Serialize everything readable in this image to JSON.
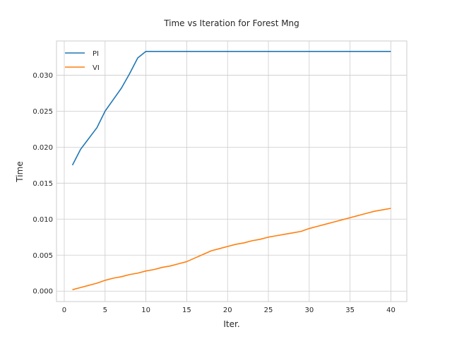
{
  "chart_data": {
    "type": "line",
    "title": "Time vs Iteration for Forest Mng",
    "xlabel": "Iter.",
    "ylabel": "Time",
    "xlim": [
      -0.95,
      41.95
    ],
    "ylim": [
      -0.00145,
      0.03475
    ],
    "xticks": [
      0,
      5,
      10,
      15,
      20,
      25,
      30,
      35,
      40
    ],
    "yticks": [
      0.0,
      0.005,
      0.01,
      0.015,
      0.02,
      0.025,
      0.03
    ],
    "ytick_labels": [
      "0.000",
      "0.005",
      "0.010",
      "0.015",
      "0.020",
      "0.025",
      "0.030"
    ],
    "grid": true,
    "legend_position": "top-left",
    "series": [
      {
        "name": "PI",
        "color": "#1f77b4",
        "x": [
          1,
          2,
          3,
          4,
          5,
          6,
          7,
          8,
          9,
          10,
          11,
          12,
          13,
          14,
          15,
          16,
          17,
          18,
          19,
          20,
          21,
          22,
          23,
          24,
          25,
          26,
          27,
          28,
          29,
          30,
          31,
          32,
          33,
          34,
          35,
          36,
          37,
          38,
          39,
          40
        ],
        "y": [
          0.0175,
          0.0197,
          0.0212,
          0.0227,
          0.025,
          0.0266,
          0.0282,
          0.0302,
          0.0324,
          0.0333,
          0.0333,
          0.0333,
          0.0333,
          0.0333,
          0.0333,
          0.0333,
          0.0333,
          0.0333,
          0.0333,
          0.0333,
          0.0333,
          0.0333,
          0.0333,
          0.0333,
          0.0333,
          0.0333,
          0.0333,
          0.0333,
          0.0333,
          0.0333,
          0.0333,
          0.0333,
          0.0333,
          0.0333,
          0.0333,
          0.0333,
          0.0333,
          0.0333,
          0.0333,
          0.0333
        ]
      },
      {
        "name": "VI",
        "color": "#ff7f0e",
        "x": [
          1,
          2,
          3,
          4,
          5,
          6,
          7,
          8,
          9,
          10,
          11,
          12,
          13,
          14,
          15,
          16,
          17,
          18,
          19,
          20,
          21,
          22,
          23,
          24,
          25,
          26,
          27,
          28,
          29,
          30,
          31,
          32,
          33,
          34,
          35,
          36,
          37,
          38,
          39,
          40
        ],
        "y": [
          0.0002,
          0.0005,
          0.0008,
          0.0011,
          0.0015,
          0.0018,
          0.002,
          0.0023,
          0.0025,
          0.0028,
          0.003,
          0.0033,
          0.0035,
          0.0038,
          0.0041,
          0.0046,
          0.0051,
          0.0056,
          0.0059,
          0.0062,
          0.0065,
          0.0067,
          0.007,
          0.0072,
          0.0075,
          0.0077,
          0.0079,
          0.0081,
          0.0083,
          0.0087,
          0.009,
          0.0093,
          0.0096,
          0.0099,
          0.0102,
          0.0105,
          0.0108,
          0.0111,
          0.0113,
          0.0115
        ]
      }
    ]
  }
}
